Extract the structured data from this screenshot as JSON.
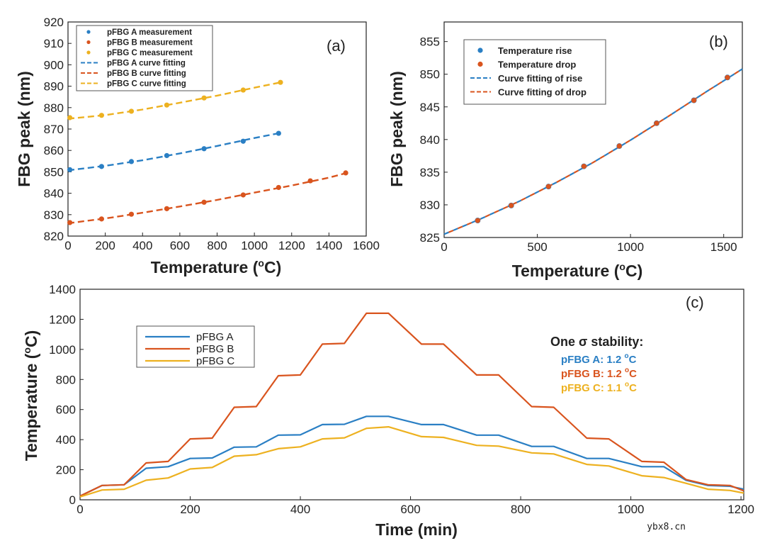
{
  "colors": {
    "A": "#2a7fc4",
    "B": "#d9541e",
    "C": "#edb120",
    "axis": "#222222"
  },
  "watermark": "ybx8.cn",
  "chart_data": [
    {
      "id": "a",
      "type": "scatter",
      "panel_tag": "(a)",
      "xlabel": "Temperature (",
      "xlabel_deg": "o",
      "xlabel_unit": "C)",
      "ylabel": "FBG peak (nm)",
      "xlim": [
        0,
        1600
      ],
      "ylim": [
        820,
        920
      ],
      "xticks": [
        0,
        200,
        400,
        600,
        800,
        1000,
        1200,
        1400,
        1600
      ],
      "yticks": [
        820,
        830,
        840,
        850,
        860,
        870,
        880,
        890,
        900,
        910,
        920
      ],
      "legend_position": "top-left",
      "series": [
        {
          "name": "pFBG A measurement",
          "kind": "points",
          "color_key": "A",
          "x": [
            10,
            180,
            340,
            530,
            730,
            940,
            1130
          ],
          "y": [
            851,
            852.5,
            854.8,
            857.6,
            860.8,
            864.3,
            868
          ]
        },
        {
          "name": "pFBG B measurement",
          "kind": "points",
          "color_key": "B",
          "x": [
            10,
            180,
            340,
            530,
            730,
            940,
            1130,
            1300,
            1490
          ],
          "y": [
            826.3,
            828,
            830.2,
            832.8,
            835.8,
            839.2,
            842.7,
            845.8,
            849.5
          ]
        },
        {
          "name": "pFBG C measurement",
          "kind": "points",
          "color_key": "C",
          "x": [
            10,
            180,
            340,
            530,
            730,
            940,
            1140
          ],
          "y": [
            875.3,
            876.4,
            878.3,
            881.2,
            884.5,
            888.2,
            891.8
          ]
        },
        {
          "name": "pFBG A curve fitting",
          "kind": "dashed",
          "color_key": "A",
          "x": [
            0,
            200,
            400,
            600,
            800,
            1000,
            1130
          ],
          "y": [
            850.7,
            852.8,
            855.4,
            858.6,
            862.1,
            865.8,
            868
          ]
        },
        {
          "name": "pFBG B curve fitting",
          "kind": "dashed",
          "color_key": "B",
          "x": [
            0,
            200,
            400,
            600,
            800,
            1000,
            1200,
            1400,
            1500
          ],
          "y": [
            826,
            828.2,
            830.9,
            833.8,
            836.9,
            840.3,
            843.6,
            847.3,
            849.6
          ]
        },
        {
          "name": "pFBG C curve fitting",
          "kind": "dashed",
          "color_key": "C",
          "x": [
            0,
            200,
            400,
            600,
            800,
            1000,
            1140
          ],
          "y": [
            874.8,
            876.5,
            879.1,
            882.3,
            885.6,
            889.3,
            891.8
          ]
        }
      ]
    },
    {
      "id": "b",
      "type": "scatter",
      "panel_tag": "(b)",
      "xlabel": "Temperature (",
      "xlabel_deg": "o",
      "xlabel_unit": "C)",
      "ylabel": "FBG peak (nm)",
      "xlim": [
        0,
        1600
      ],
      "ylim": [
        825,
        858
      ],
      "xticks": [
        0,
        500,
        1000,
        1500
      ],
      "yticks": [
        825,
        830,
        835,
        840,
        845,
        850,
        855
      ],
      "legend_position": "top-left",
      "series": [
        {
          "name": "Temperature rise",
          "kind": "points",
          "color_key": "A",
          "x": [
            180,
            360,
            560,
            750,
            940,
            1140,
            1340,
            1520
          ],
          "y": [
            827.6,
            829.9,
            832.8,
            835.9,
            839,
            842.5,
            846,
            849.5
          ]
        },
        {
          "name": "Temperature drop",
          "kind": "points",
          "color_key": "B",
          "x": [
            180,
            360,
            560,
            750,
            940,
            1140,
            1340,
            1520
          ],
          "y": [
            827.6,
            829.9,
            832.8,
            835.9,
            839,
            842.5,
            846,
            849.5
          ]
        },
        {
          "name": "Curve fitting of rise",
          "kind": "dashed",
          "color_key": "A",
          "x": [
            0,
            200,
            400,
            600,
            800,
            1000,
            1200,
            1400,
            1600
          ],
          "y": [
            825.5,
            827.9,
            830.5,
            833.4,
            836.5,
            839.9,
            843.5,
            847.2,
            850.8
          ]
        },
        {
          "name": "Curve fitting of drop",
          "kind": "dashed",
          "color_key": "B",
          "x": [
            0,
            200,
            400,
            600,
            800,
            1000,
            1200,
            1400,
            1600
          ],
          "y": [
            825.5,
            827.9,
            830.5,
            833.4,
            836.5,
            839.9,
            843.5,
            847.2,
            850.8
          ]
        }
      ]
    },
    {
      "id": "c",
      "type": "line",
      "panel_tag": "(c)",
      "xlabel": "Time (min)",
      "ylabel": "Temperature (",
      "ylabel_deg": "o",
      "ylabel_unit": "C)",
      "xlim": [
        0,
        1205
      ],
      "ylim": [
        0,
        1400
      ],
      "xticks": [
        0,
        200,
        400,
        600,
        800,
        1000,
        1200
      ],
      "yticks": [
        0,
        200,
        400,
        600,
        800,
        1000,
        1200,
        1400
      ],
      "legend_position": "top-left",
      "x": [
        0,
        40,
        80,
        120,
        160,
        200,
        240,
        280,
        320,
        360,
        400,
        440,
        480,
        520,
        560,
        620,
        660,
        720,
        760,
        820,
        860,
        920,
        960,
        1020,
        1060,
        1100,
        1140,
        1180,
        1205
      ],
      "series": [
        {
          "name": "pFBG A",
          "color_key": "A",
          "values": [
            25,
            95,
            100,
            210,
            220,
            275,
            278,
            350,
            352,
            430,
            432,
            500,
            502,
            555,
            555,
            500,
            500,
            430,
            430,
            355,
            355,
            275,
            275,
            220,
            220,
            130,
            95,
            90,
            70
          ]
        },
        {
          "name": "pFBG B",
          "color_key": "B",
          "values": [
            25,
            95,
            100,
            245,
            255,
            405,
            410,
            615,
            620,
            825,
            830,
            1035,
            1040,
            1240,
            1240,
            1035,
            1035,
            830,
            830,
            620,
            615,
            410,
            405,
            255,
            250,
            135,
            100,
            95,
            60
          ]
        },
        {
          "name": "pFBG C",
          "color_key": "C",
          "values": [
            20,
            65,
            70,
            130,
            145,
            205,
            215,
            290,
            300,
            340,
            352,
            405,
            412,
            475,
            485,
            420,
            415,
            362,
            357,
            312,
            305,
            235,
            225,
            160,
            148,
            110,
            70,
            62,
            45
          ]
        }
      ],
      "annotation": {
        "title_prefix": "One ",
        "title_sigma": "σ",
        "title_suffix": " stability:",
        "lines": [
          {
            "label": "pFBG A: 1.2 ",
            "deg": "o",
            "unit": "C",
            "color_key": "A"
          },
          {
            "label": "pFBG B: 1.2 ",
            "deg": "o",
            "unit": "C",
            "color_key": "B"
          },
          {
            "label": "pFBG C: 1.1 ",
            "deg": "o",
            "unit": "C",
            "color_key": "C"
          }
        ]
      }
    }
  ]
}
